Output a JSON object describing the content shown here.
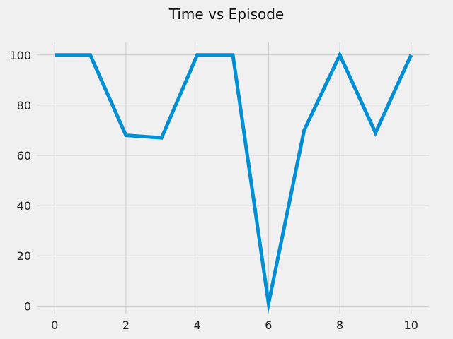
{
  "chart_data": {
    "type": "line",
    "title": "Time vs Episode",
    "xlabel": "",
    "ylabel": "",
    "xlim": [
      -0.5,
      10.5
    ],
    "ylim": [
      -3,
      105
    ],
    "x_ticks": [
      0,
      2,
      4,
      6,
      8,
      10
    ],
    "y_ticks": [
      0,
      20,
      40,
      60,
      80,
      100
    ],
    "x_tick_labels": [
      "0",
      "2",
      "4",
      "6",
      "8",
      "10"
    ],
    "y_tick_labels": [
      "0",
      "20",
      "40",
      "60",
      "80",
      "100"
    ],
    "grid": true,
    "legend": "none",
    "series": [
      {
        "x": [
          0,
          1,
          2,
          3,
          4,
          5,
          6,
          7,
          8,
          9,
          10
        ],
        "values": [
          100,
          100,
          68,
          67,
          100,
          100,
          1,
          70,
          100,
          69,
          100
        ],
        "color": "#008fd5"
      }
    ],
    "colors": {
      "background": "#f0f0f0",
      "grid": "#cbcbcb",
      "line": "#008fd5"
    }
  }
}
